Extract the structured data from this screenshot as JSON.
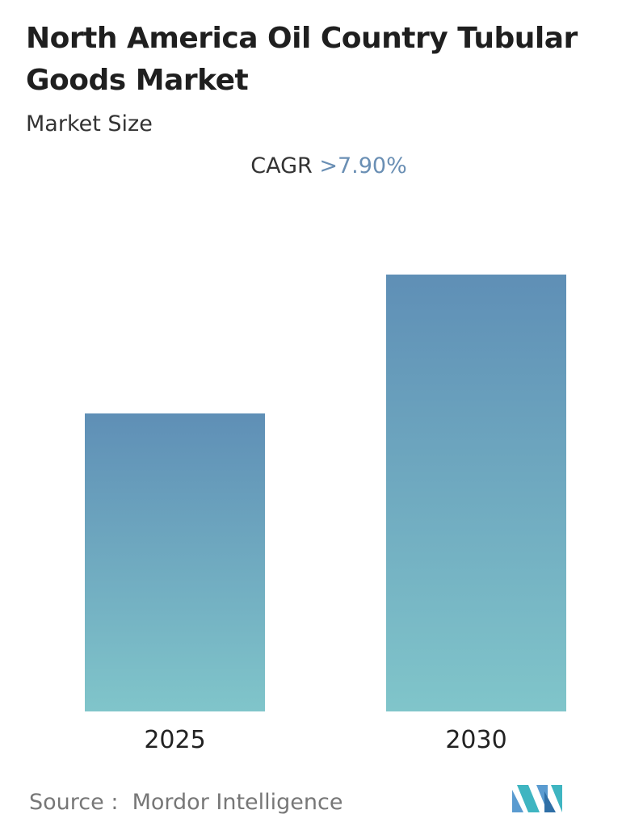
{
  "chart_data": {
    "type": "bar",
    "title": "North America Oil Country Tubular Goods Market",
    "subtitle": "Market Size",
    "cagr_label": "CAGR",
    "cagr_value": ">7.90%",
    "categories": [
      "2025",
      "2030"
    ],
    "values": [
      100,
      146.6
    ],
    "color_top": "#5f8fb6",
    "color_bottom": "#80c5ca",
    "source_label": "Source :",
    "source": "Mordor Intelligence"
  }
}
